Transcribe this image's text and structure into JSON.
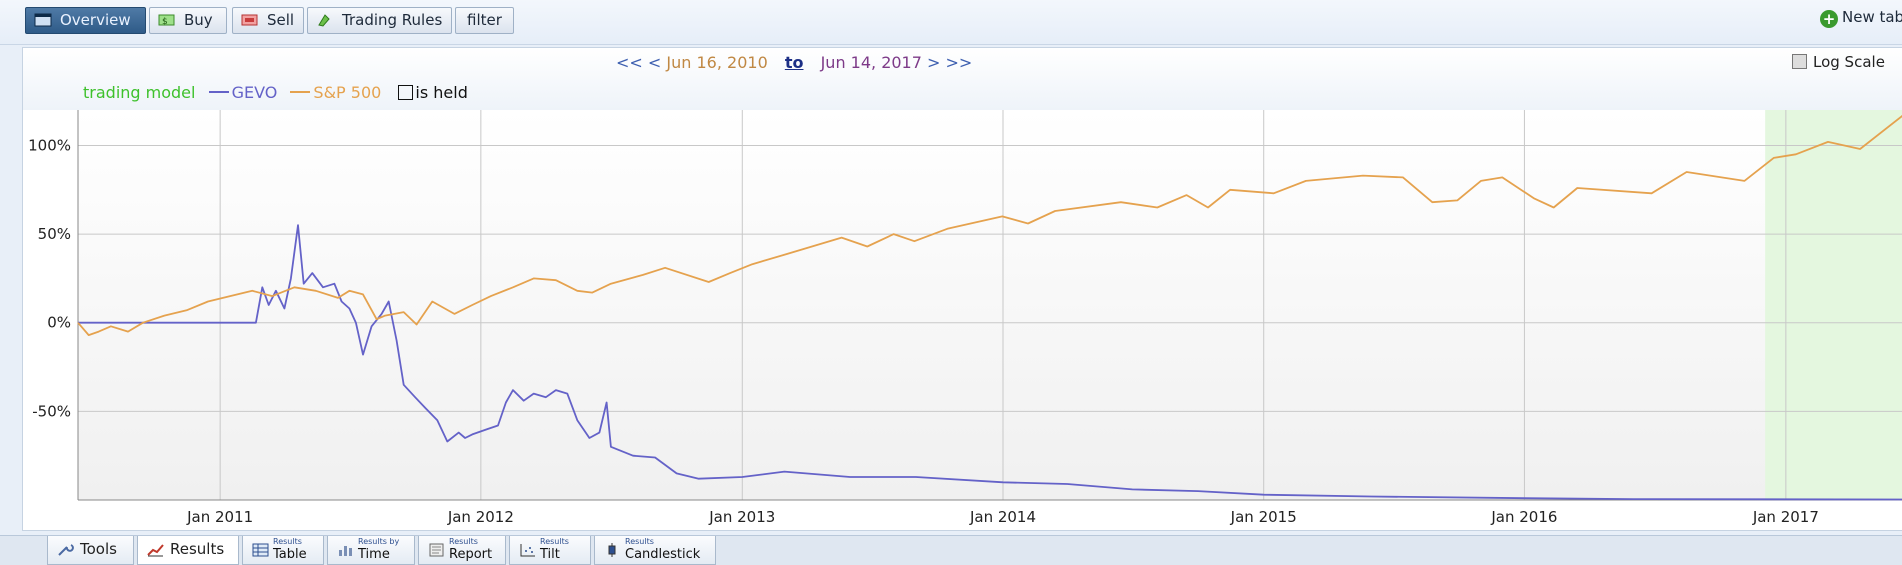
{
  "toolbar": {
    "buttons": [
      {
        "label": "Overview",
        "icon": "overview-icon"
      },
      {
        "label": "Buy",
        "icon": "buy-icon"
      },
      {
        "label": "Sell",
        "icon": "sell-icon"
      },
      {
        "label": "Trading Rules",
        "icon": "trading-rules-icon"
      },
      {
        "label": "filter"
      }
    ],
    "new_tab_label": "New tab"
  },
  "date_nav": {
    "prev_far": "<<",
    "prev": "<",
    "start_date": "Jun 16, 2010",
    "to": "to",
    "end_date": "Jun 14, 2017",
    "next": ">",
    "next_far": ">>"
  },
  "log_scale_label": "Log Scale",
  "legend": {
    "trading_model": "trading model",
    "gevo": "GEVO",
    "sp500": "S&P 500",
    "is_held": "is held"
  },
  "colors": {
    "trading_model": "#3ec12c",
    "gevo": "#6462c8",
    "sp500": "#e5a24e",
    "held_region": "#e4f7df",
    "grid": "#c8c8c8"
  },
  "chart_data": {
    "type": "line",
    "x_range": [
      "2010-06-16",
      "2017-06-14"
    ],
    "ylim": [
      -100,
      120
    ],
    "y_ticks": [
      100,
      50,
      0,
      -50
    ],
    "y_tick_labels": [
      "100%",
      "50%",
      "0%",
      "-50%"
    ],
    "x_ticks": [
      "2011-01-01",
      "2012-01-01",
      "2013-01-01",
      "2014-01-01",
      "2015-01-01",
      "2016-01-01",
      "2017-01-01"
    ],
    "x_tick_labels": [
      "Jan 2011",
      "Jan 2012",
      "Jan 2013",
      "Jan 2014",
      "Jan 2015",
      "Jan 2016",
      "Jan 2017"
    ],
    "grid": true,
    "held_periods": [
      [
        "2016-12-03",
        "2017-06-14"
      ]
    ],
    "series": [
      {
        "name": "GEVO",
        "points": [
          [
            "2010-06-16",
            0
          ],
          [
            "2010-12-01",
            0
          ],
          [
            "2011-01-15",
            0
          ],
          [
            "2011-02-20",
            0
          ],
          [
            "2011-03-01",
            20
          ],
          [
            "2011-03-10",
            10
          ],
          [
            "2011-03-20",
            18
          ],
          [
            "2011-04-01",
            8
          ],
          [
            "2011-04-10",
            25
          ],
          [
            "2011-04-20",
            55
          ],
          [
            "2011-04-28",
            22
          ],
          [
            "2011-05-10",
            28
          ],
          [
            "2011-05-25",
            20
          ],
          [
            "2011-06-10",
            22
          ],
          [
            "2011-06-20",
            12
          ],
          [
            "2011-07-01",
            8
          ],
          [
            "2011-07-10",
            0
          ],
          [
            "2011-07-20",
            -18
          ],
          [
            "2011-08-01",
            -2
          ],
          [
            "2011-08-15",
            5
          ],
          [
            "2011-08-25",
            12
          ],
          [
            "2011-09-05",
            -10
          ],
          [
            "2011-09-15",
            -35
          ],
          [
            "2011-10-01",
            -42
          ],
          [
            "2011-10-15",
            -48
          ],
          [
            "2011-11-01",
            -55
          ],
          [
            "2011-11-15",
            -67
          ],
          [
            "2011-12-01",
            -62
          ],
          [
            "2011-12-10",
            -65
          ],
          [
            "2011-12-20",
            -63
          ],
          [
            "2012-01-10",
            -60
          ],
          [
            "2012-01-25",
            -58
          ],
          [
            "2012-02-05",
            -45
          ],
          [
            "2012-02-15",
            -38
          ],
          [
            "2012-03-01",
            -44
          ],
          [
            "2012-03-15",
            -40
          ],
          [
            "2012-04-01",
            -42
          ],
          [
            "2012-04-15",
            -38
          ],
          [
            "2012-05-01",
            -40
          ],
          [
            "2012-05-15",
            -55
          ],
          [
            "2012-06-01",
            -65
          ],
          [
            "2012-06-15",
            -62
          ],
          [
            "2012-06-25",
            -45
          ],
          [
            "2012-07-01",
            -70
          ],
          [
            "2012-08-01",
            -75
          ],
          [
            "2012-09-01",
            -76
          ],
          [
            "2012-10-01",
            -85
          ],
          [
            "2012-11-01",
            -88
          ],
          [
            "2013-01-01",
            -87
          ],
          [
            "2013-03-01",
            -84
          ],
          [
            "2013-06-01",
            -87
          ],
          [
            "2013-09-01",
            -87
          ],
          [
            "2014-01-01",
            -90
          ],
          [
            "2014-04-01",
            -91
          ],
          [
            "2014-07-01",
            -94
          ],
          [
            "2014-10-01",
            -95
          ],
          [
            "2015-01-01",
            -97
          ],
          [
            "2015-06-01",
            -98
          ],
          [
            "2016-01-01",
            -99
          ],
          [
            "2016-06-01",
            -99.5
          ],
          [
            "2017-06-14",
            -99.7
          ]
        ]
      },
      {
        "name": "S&P 500",
        "points": [
          [
            "2010-06-16",
            0
          ],
          [
            "2010-07-01",
            -7
          ],
          [
            "2010-07-15",
            -5
          ],
          [
            "2010-08-01",
            -2
          ],
          [
            "2010-08-25",
            -5
          ],
          [
            "2010-09-15",
            0
          ],
          [
            "2010-10-15",
            4
          ],
          [
            "2010-11-15",
            7
          ],
          [
            "2010-12-15",
            12
          ],
          [
            "2011-01-15",
            15
          ],
          [
            "2011-02-15",
            18
          ],
          [
            "2011-03-15",
            15
          ],
          [
            "2011-04-15",
            20
          ],
          [
            "2011-05-15",
            18
          ],
          [
            "2011-06-15",
            14
          ],
          [
            "2011-07-01",
            18
          ],
          [
            "2011-07-20",
            16
          ],
          [
            "2011-08-08",
            2
          ],
          [
            "2011-08-20",
            4
          ],
          [
            "2011-09-15",
            6
          ],
          [
            "2011-10-03",
            -1
          ],
          [
            "2011-10-25",
            12
          ],
          [
            "2011-11-25",
            5
          ],
          [
            "2011-12-20",
            10
          ],
          [
            "2012-01-15",
            15
          ],
          [
            "2012-02-15",
            20
          ],
          [
            "2012-03-15",
            25
          ],
          [
            "2012-04-15",
            24
          ],
          [
            "2012-05-15",
            18
          ],
          [
            "2012-06-05",
            17
          ],
          [
            "2012-07-01",
            22
          ],
          [
            "2012-08-15",
            27
          ],
          [
            "2012-09-15",
            31
          ],
          [
            "2012-11-15",
            23
          ],
          [
            "2012-12-15",
            28
          ],
          [
            "2013-01-15",
            33
          ],
          [
            "2013-03-15",
            40
          ],
          [
            "2013-05-20",
            48
          ],
          [
            "2013-06-25",
            43
          ],
          [
            "2013-08-01",
            50
          ],
          [
            "2013-08-30",
            46
          ],
          [
            "2013-10-15",
            53
          ],
          [
            "2013-12-31",
            60
          ],
          [
            "2014-02-05",
            56
          ],
          [
            "2014-03-15",
            63
          ],
          [
            "2014-06-15",
            68
          ],
          [
            "2014-08-05",
            65
          ],
          [
            "2014-09-15",
            72
          ],
          [
            "2014-10-15",
            65
          ],
          [
            "2014-11-15",
            75
          ],
          [
            "2015-01-15",
            73
          ],
          [
            "2015-03-01",
            80
          ],
          [
            "2015-05-20",
            83
          ],
          [
            "2015-07-15",
            82
          ],
          [
            "2015-08-25",
            68
          ],
          [
            "2015-09-29",
            69
          ],
          [
            "2015-11-01",
            80
          ],
          [
            "2015-12-01",
            82
          ],
          [
            "2016-01-15",
            70
          ],
          [
            "2016-02-11",
            65
          ],
          [
            "2016-03-15",
            76
          ],
          [
            "2016-06-27",
            73
          ],
          [
            "2016-08-15",
            85
          ],
          [
            "2016-11-04",
            80
          ],
          [
            "2016-12-15",
            93
          ],
          [
            "2017-01-15",
            95
          ],
          [
            "2017-03-01",
            102
          ],
          [
            "2017-04-15",
            98
          ],
          [
            "2017-06-14",
            117
          ]
        ]
      }
    ]
  },
  "bottom_tabs": [
    {
      "label": "Tools",
      "icon": "wrench-icon"
    },
    {
      "label": "Results",
      "icon": "results-chart-icon"
    },
    {
      "small": "Results",
      "label": "Table",
      "icon": "table-icon"
    },
    {
      "small": "Results by",
      "label": "Time",
      "icon": "time-bars-icon"
    },
    {
      "small": "Results",
      "label": "Report",
      "icon": "report-icon"
    },
    {
      "small": "Results",
      "label": "Tilt",
      "icon": "tilt-icon"
    },
    {
      "small": "Results",
      "label": "Candlestick",
      "icon": "candlestick-icon"
    }
  ]
}
